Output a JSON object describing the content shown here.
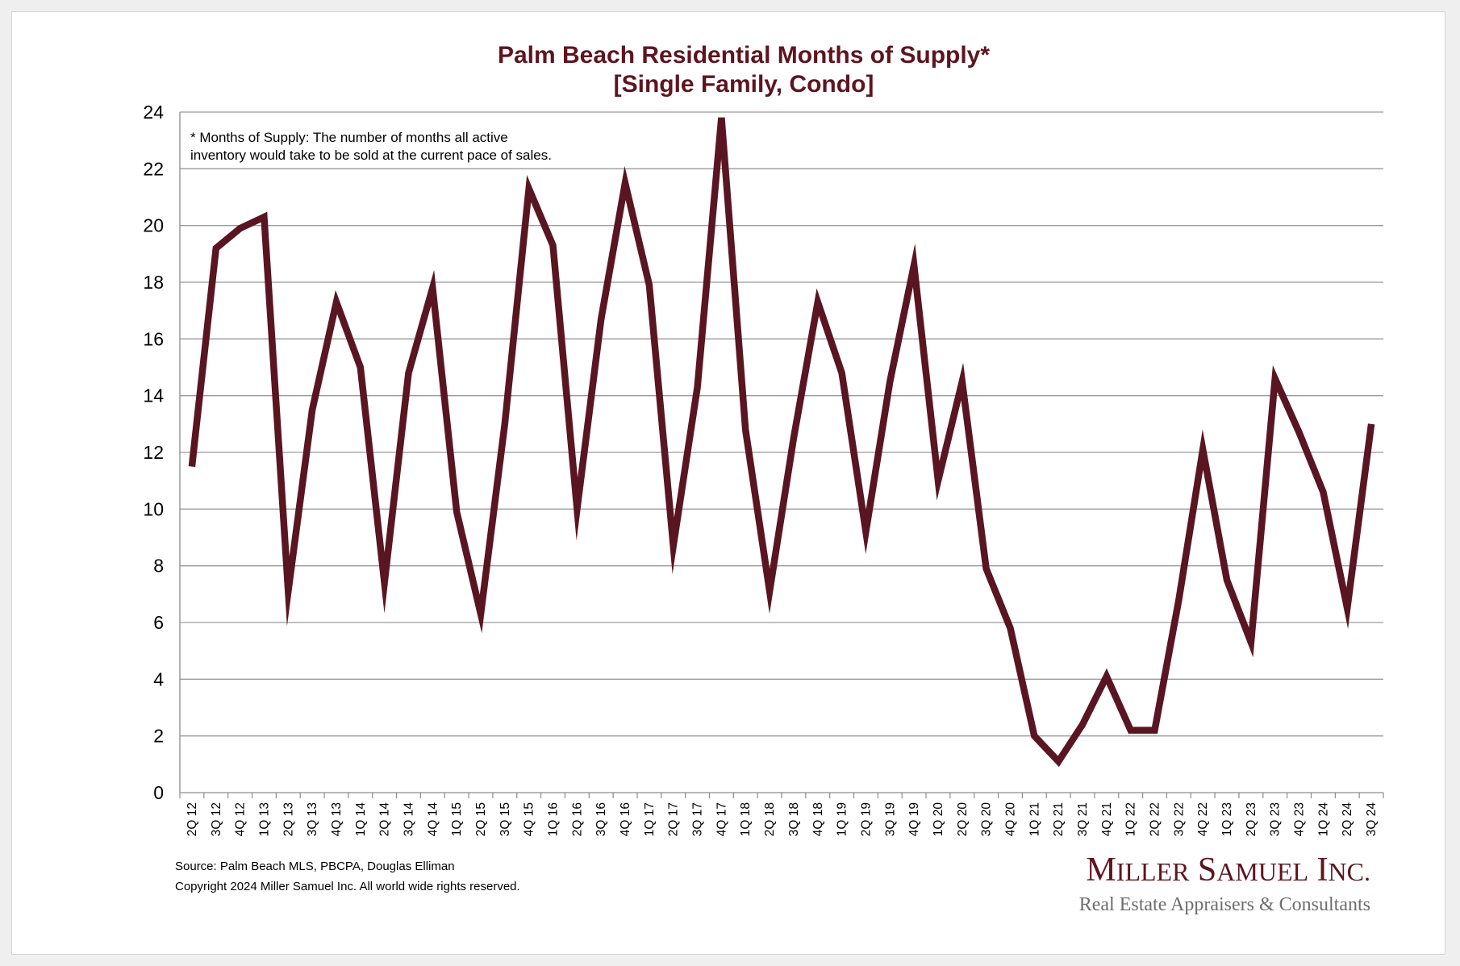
{
  "chart_data": {
    "type": "line",
    "title": "Palm Beach Residential Months of Supply*",
    "subtitle": "[Single Family, Condo]",
    "xlabel": "",
    "ylabel": "",
    "ylim": [
      0,
      24
    ],
    "yticks": [
      0,
      2,
      4,
      6,
      8,
      10,
      12,
      14,
      16,
      18,
      20,
      22,
      24
    ],
    "grid": true,
    "legend": "none",
    "categories": [
      "2Q 12",
      "3Q 12",
      "4Q 12",
      "1Q 13",
      "2Q 13",
      "3Q 13",
      "4Q 13",
      "1Q 14",
      "2Q 14",
      "3Q 14",
      "4Q 14",
      "1Q 15",
      "2Q 15",
      "3Q 15",
      "4Q 15",
      "1Q 16",
      "2Q 16",
      "3Q 16",
      "4Q 16",
      "1Q 17",
      "2Q 17",
      "3Q 17",
      "4Q 17",
      "1Q 18",
      "2Q 18",
      "3Q 18",
      "4Q 18",
      "1Q 19",
      "2Q 19",
      "3Q 19",
      "4Q 19",
      "1Q 20",
      "2Q 20",
      "3Q 20",
      "4Q 20",
      "1Q 21",
      "2Q 21",
      "3Q 21",
      "4Q 21",
      "1Q 22",
      "2Q 22",
      "3Q 22",
      "4Q 22",
      "1Q 23",
      "2Q 23",
      "3Q 23",
      "4Q 23",
      "1Q 24",
      "2Q 24",
      "3Q 24"
    ],
    "series": [
      {
        "values": [
          11.5,
          19.2,
          19.9,
          20.3,
          7.1,
          13.5,
          17.3,
          15.0,
          7.4,
          14.8,
          17.8,
          9.9,
          6.3,
          13.0,
          21.3,
          19.3,
          10.0,
          16.7,
          21.5,
          17.9,
          8.7,
          14.3,
          23.8,
          12.8,
          7.1,
          12.5,
          17.3,
          14.8,
          9.2,
          14.5,
          18.6,
          11.0,
          14.5,
          7.9,
          5.8,
          2.0,
          1.1,
          2.4,
          4.1,
          2.2,
          2.2,
          6.8,
          12.1,
          7.5,
          5.3,
          14.6,
          12.7,
          10.6,
          6.5,
          13.0
        ]
      }
    ],
    "colors": {
      "title": "#5e1520",
      "line": "#5a1522",
      "grid": "#9a9a9a",
      "axis": "#8c8c8c"
    },
    "annotation_lines": [
      "* Months of Supply: The number of months all active",
      "inventory would take to be sold at the current pace of sales."
    ]
  },
  "footer": {
    "source": "Source: Palm Beach MLS, PBCPA, Douglas Elliman",
    "copyright": "Copyright 2024 Miller Samuel Inc.  All world wide rights reserved."
  },
  "brand": {
    "name": "Miller Samuel Inc.",
    "tagline": "Real Estate Appraisers & Consultants",
    "color_name": "#5e1520",
    "color_tagline": "#6d6d6d"
  }
}
